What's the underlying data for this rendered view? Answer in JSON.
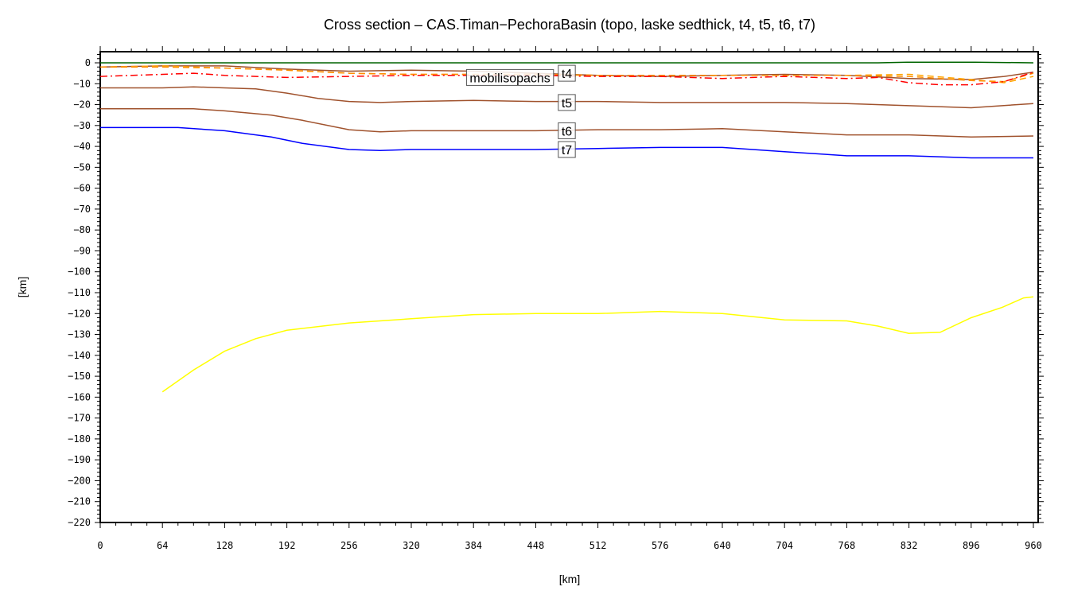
{
  "chart_data": {
    "type": "line",
    "title": "Cross section – CAS.Timan−PechoraBasin (topo, laske sedthick, t4, t5, t6, t7)",
    "xlabel": "[km]",
    "ylabel": "[km]",
    "xlim": [
      0,
      965
    ],
    "ylim": [
      -220,
      5
    ],
    "xticks": [
      0,
      64,
      128,
      192,
      256,
      320,
      384,
      448,
      512,
      576,
      640,
      704,
      768,
      832,
      896,
      960
    ],
    "yticks": [
      0,
      -10,
      -20,
      -30,
      -40,
      -50,
      -60,
      -70,
      -80,
      -90,
      -100,
      -110,
      -120,
      -130,
      -140,
      -150,
      -160,
      -170,
      -180,
      -190,
      -200,
      -210,
      -220
    ],
    "grid": false,
    "series": [
      {
        "color": "#006400",
        "dash": "solid",
        "points": [
          [
            0,
            0
          ],
          [
            320,
            0
          ],
          [
            640,
            0
          ],
          [
            800,
            0
          ],
          [
            830,
            0.3
          ],
          [
            900,
            0.3
          ],
          [
            960,
            0
          ]
        ]
      },
      {
        "color": "#a0522d",
        "dash": "solid",
        "label": "t4",
        "label_at": [
          480,
          -5
        ],
        "points": [
          [
            0,
            -2
          ],
          [
            64,
            -1.5
          ],
          [
            128,
            -1.5
          ],
          [
            192,
            -3
          ],
          [
            256,
            -4
          ],
          [
            320,
            -3.5
          ],
          [
            384,
            -4
          ],
          [
            448,
            -5
          ],
          [
            512,
            -6
          ],
          [
            576,
            -6.5
          ],
          [
            640,
            -6
          ],
          [
            704,
            -5.5
          ],
          [
            768,
            -6
          ],
          [
            832,
            -7.5
          ],
          [
            896,
            -8
          ],
          [
            930,
            -6.5
          ],
          [
            960,
            -4.5
          ]
        ]
      },
      {
        "color": "#ffa500",
        "dash": "dash",
        "points": [
          [
            0,
            -2
          ],
          [
            64,
            -1.5
          ],
          [
            128,
            -2.5
          ],
          [
            192,
            -3.5
          ],
          [
            256,
            -5
          ],
          [
            320,
            -5.5
          ],
          [
            384,
            -5.5
          ],
          [
            448,
            -5.5
          ],
          [
            512,
            -6
          ],
          [
            576,
            -6
          ],
          [
            640,
            -6
          ],
          [
            704,
            -6
          ],
          [
            768,
            -6
          ],
          [
            832,
            -5.5
          ],
          [
            896,
            -8
          ],
          [
            930,
            -9.5
          ],
          [
            960,
            -6.5
          ]
        ]
      },
      {
        "color": "#ff8c00",
        "dash": "dash",
        "points": [
          [
            0,
            -2
          ],
          [
            64,
            -2
          ],
          [
            128,
            -2.5
          ],
          [
            192,
            -3.5
          ],
          [
            256,
            -5
          ],
          [
            320,
            -5.5
          ],
          [
            384,
            -5.5
          ],
          [
            448,
            -5.5
          ],
          [
            512,
            -6
          ],
          [
            576,
            -6
          ],
          [
            640,
            -6
          ],
          [
            704,
            -6
          ],
          [
            768,
            -6
          ],
          [
            832,
            -6.5
          ],
          [
            896,
            -8.5
          ],
          [
            930,
            -9
          ],
          [
            960,
            -5
          ]
        ]
      },
      {
        "color": "#ff0000",
        "dash": "dashdot",
        "label": "mobilisopachs",
        "label_at": [
          483,
          -7
        ],
        "points": [
          [
            0,
            -6.5
          ],
          [
            64,
            -5.5
          ],
          [
            96,
            -5
          ],
          [
            128,
            -6
          ],
          [
            192,
            -7
          ],
          [
            256,
            -6.5
          ],
          [
            320,
            -6
          ],
          [
            384,
            -6
          ],
          [
            448,
            -6
          ],
          [
            512,
            -6.5
          ],
          [
            576,
            -6.5
          ],
          [
            640,
            -7.5
          ],
          [
            704,
            -6.5
          ],
          [
            768,
            -7.5
          ],
          [
            800,
            -7
          ],
          [
            832,
            -9.5
          ],
          [
            864,
            -10.5
          ],
          [
            896,
            -10.5
          ],
          [
            930,
            -9
          ],
          [
            960,
            -4.5
          ]
        ]
      },
      {
        "color": "#a0522d",
        "dash": "solid",
        "label": "t5",
        "label_at": [
          480,
          -19
        ],
        "points": [
          [
            0,
            -12
          ],
          [
            64,
            -12
          ],
          [
            96,
            -11.5
          ],
          [
            128,
            -12
          ],
          [
            160,
            -12.5
          ],
          [
            192,
            -14.5
          ],
          [
            224,
            -17
          ],
          [
            256,
            -18.5
          ],
          [
            288,
            -19
          ],
          [
            320,
            -18.5
          ],
          [
            384,
            -18
          ],
          [
            448,
            -18.5
          ],
          [
            512,
            -18.5
          ],
          [
            576,
            -19
          ],
          [
            640,
            -19
          ],
          [
            704,
            -19
          ],
          [
            768,
            -19.5
          ],
          [
            832,
            -20.5
          ],
          [
            896,
            -21.5
          ],
          [
            960,
            -19.5
          ]
        ]
      },
      {
        "color": "#a0522d",
        "dash": "solid",
        "label": "t6",
        "label_at": [
          480,
          -32.5
        ],
        "points": [
          [
            0,
            -22
          ],
          [
            64,
            -22
          ],
          [
            96,
            -22
          ],
          [
            128,
            -23
          ],
          [
            176,
            -25
          ],
          [
            208,
            -27.5
          ],
          [
            256,
            -32
          ],
          [
            288,
            -33
          ],
          [
            320,
            -32.5
          ],
          [
            384,
            -32.5
          ],
          [
            448,
            -32.5
          ],
          [
            512,
            -32
          ],
          [
            576,
            -32
          ],
          [
            640,
            -31.5
          ],
          [
            704,
            -33
          ],
          [
            768,
            -34.5
          ],
          [
            832,
            -34.5
          ],
          [
            896,
            -35.5
          ],
          [
            960,
            -35
          ]
        ]
      },
      {
        "color": "#0000ff",
        "dash": "solid",
        "label": "t7",
        "label_at": [
          480,
          -41.5
        ],
        "points": [
          [
            0,
            -31
          ],
          [
            80,
            -31
          ],
          [
            128,
            -32.5
          ],
          [
            176,
            -35.5
          ],
          [
            208,
            -38.5
          ],
          [
            256,
            -41.5
          ],
          [
            288,
            -42
          ],
          [
            320,
            -41.5
          ],
          [
            448,
            -41.5
          ],
          [
            512,
            -41
          ],
          [
            576,
            -40.5
          ],
          [
            640,
            -40.5
          ],
          [
            704,
            -42.5
          ],
          [
            768,
            -44.5
          ],
          [
            832,
            -44.5
          ],
          [
            896,
            -45.5
          ],
          [
            960,
            -45.5
          ]
        ]
      },
      {
        "color": "#ffff00",
        "dash": "solid",
        "points": [
          [
            64,
            -157.5
          ],
          [
            96,
            -147
          ],
          [
            128,
            -138
          ],
          [
            160,
            -132
          ],
          [
            192,
            -128
          ],
          [
            256,
            -124.5
          ],
          [
            320,
            -122.5
          ],
          [
            384,
            -120.5
          ],
          [
            448,
            -120
          ],
          [
            512,
            -120
          ],
          [
            576,
            -119
          ],
          [
            640,
            -120
          ],
          [
            704,
            -123
          ],
          [
            768,
            -123.5
          ],
          [
            800,
            -126
          ],
          [
            832,
            -129.5
          ],
          [
            864,
            -129
          ],
          [
            896,
            -122
          ],
          [
            928,
            -117
          ],
          [
            950,
            -112.5
          ],
          [
            960,
            -112
          ]
        ]
      }
    ]
  }
}
